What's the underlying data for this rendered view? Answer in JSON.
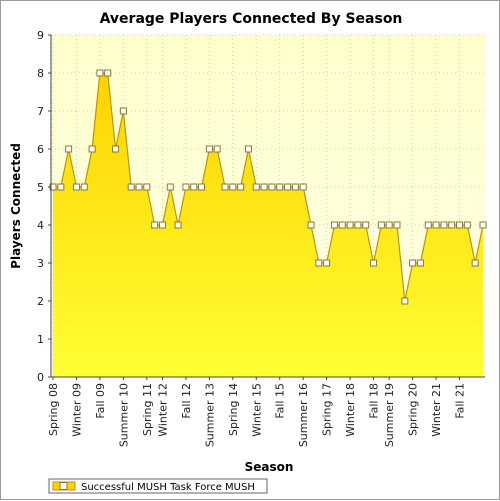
{
  "chart_data": {
    "type": "area",
    "title": "Average Players Connected By Season",
    "xlabel": "Season",
    "ylabel": "Players Connected",
    "ylim": [
      0,
      9
    ],
    "yticks": [
      0,
      1,
      2,
      3,
      4,
      5,
      6,
      7,
      8,
      9
    ],
    "grid": true,
    "legend_position": "bottom-left",
    "colors": {
      "fill_top": "#ffd200",
      "fill_bottom": "#ffff33",
      "line": "#b8960a",
      "plot_bg_top": "#ffffcc",
      "plot_bg_bottom": "#ffffe8"
    },
    "x_tick_labels": [
      "Spring 08",
      "Winter 09",
      "Fall 09",
      "Summer 10",
      "Spring 11",
      "Winter 12",
      "Fall 12",
      "Summer 13",
      "Spring 14",
      "Winter 15",
      "Fall 15",
      "Summer 16",
      "Spring 17",
      "Winter 18",
      "Fall 18",
      "Summer 19",
      "Spring 20",
      "Winter 21",
      "Fall 21"
    ],
    "series": [
      {
        "name": "Successful MUSH Task Force MUSH",
        "values": [
          5,
          5,
          6,
          5,
          5,
          6,
          8,
          8,
          6,
          7,
          5,
          5,
          5,
          4,
          4,
          5,
          4,
          5,
          5,
          5,
          6,
          6,
          5,
          5,
          5,
          6,
          5,
          5,
          5,
          5,
          5,
          5,
          5,
          4,
          3,
          3,
          4,
          4,
          4,
          4,
          4,
          3,
          4,
          4,
          4,
          2,
          3,
          3,
          4,
          4,
          4,
          4,
          4,
          4,
          3,
          4
        ]
      }
    ]
  }
}
